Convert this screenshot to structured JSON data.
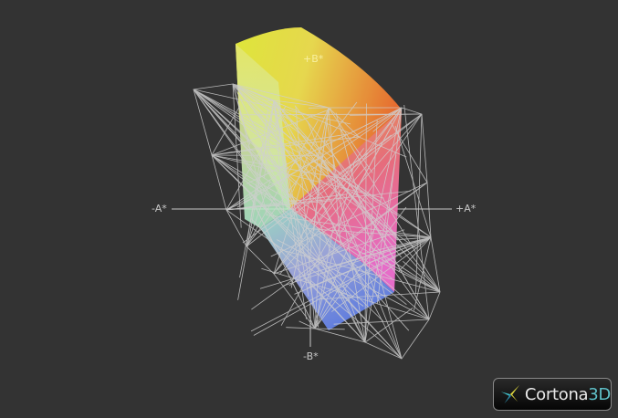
{
  "viewer": {
    "axes": {
      "plus_b": "+B*",
      "minus_b": "-B*",
      "plus_a": "+A*",
      "minus_a": "-A*"
    },
    "logo": {
      "brand": "Cortona",
      "suffix": "3D"
    },
    "colors": {
      "background": "#333333",
      "wireframe": "#d0d0d0",
      "axis": "#c8c8c8"
    }
  }
}
